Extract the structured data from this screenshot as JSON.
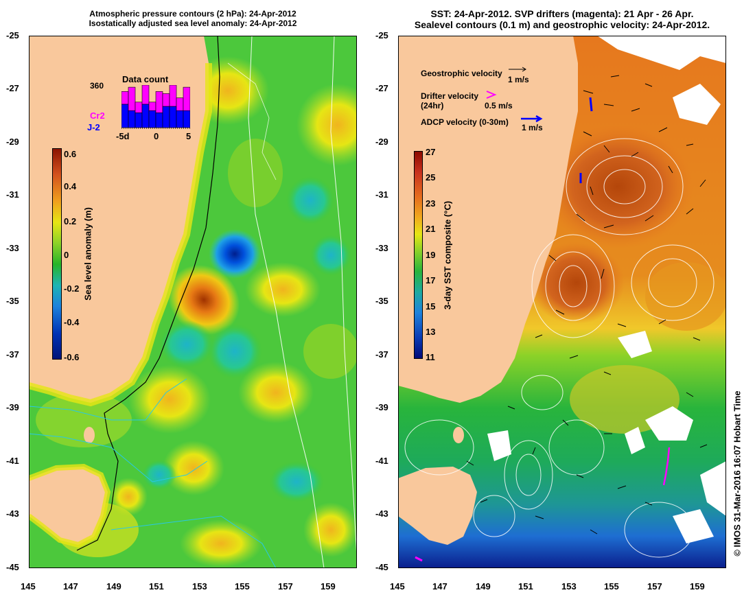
{
  "left_panel": {
    "title_line1": "Atmospheric pressure contours (2 hPa): 24-Apr-2012",
    "title_line2": "Isostatically adjusted sea level anomaly: 24-Apr-2012",
    "colorbar": {
      "label": "Sea level anomaly (m)",
      "ticks": [
        "0.6",
        "0.4",
        "0.2",
        "0",
        "-0.2",
        "-0.4",
        "-0.6"
      ]
    },
    "inset": {
      "title": "Data count",
      "max_label": "360",
      "x_ticks": [
        "-5d",
        "0",
        "5"
      ],
      "series": [
        {
          "name": "Cr2",
          "color": "#ff00ff"
        },
        {
          "name": "J-2",
          "color": "#0000ff"
        }
      ],
      "chart_data": {
        "type": "bar",
        "categories": [
          "-5",
          "-4",
          "-3",
          "-2",
          "-1",
          "0",
          "1",
          "2",
          "3",
          "4"
        ],
        "series": [
          {
            "name": "J-2",
            "values": [
              0.55,
              0.4,
              0.35,
              0.55,
              0.4,
              0.35,
              0.5,
              0.5,
              0.4,
              0.4
            ]
          },
          {
            "name": "Cr2",
            "values": [
              0.3,
              0.55,
              0.25,
              0.45,
              0.2,
              0.5,
              0.3,
              0.5,
              0.3,
              0.55
            ]
          }
        ]
      }
    }
  },
  "right_panel": {
    "title_line1": "SST: 24-Apr-2012. SVP drifters (magenta): 21 Apr - 26 Apr.",
    "title_line2": "Sealevel contours (0.1 m) and geostrophic velocity: 24-Apr-2012.",
    "colorbar": {
      "label": "3-day SST composite (°C)",
      "ticks": [
        "27",
        "25",
        "23",
        "21",
        "19",
        "17",
        "15",
        "13",
        "11"
      ]
    },
    "legend": {
      "geostrophic": "Geostrophic velocity",
      "geostrophic_scale": "1 m/s",
      "drifter_l1": "Drifter velocity",
      "drifter_l2": "(24hr)",
      "drifter_scale": "0.5 m/s",
      "adcp": "ADCP velocity (0-30m)",
      "adcp_scale": "1 m/s",
      "drifter_color": "#ff00ff",
      "adcp_color": "#0000ff"
    }
  },
  "axes": {
    "y_ticks": [
      "-25",
      "-27",
      "-29",
      "-31",
      "-33",
      "-35",
      "-37",
      "-39",
      "-41",
      "-43",
      "-45"
    ],
    "x_ticks": [
      "145",
      "147",
      "149",
      "151",
      "153",
      "155",
      "157",
      "159"
    ]
  },
  "credit": "© IMOS 31-Mar-2016 16:07 Hobart Time",
  "colors": {
    "land": "#f9c89c",
    "sla_positive": "#e8e800",
    "sla_neutral": "#3cc83c",
    "sla_negative": "#0046c8",
    "sst_warm": "#e88c1c",
    "sst_mid": "#28b428",
    "sst_cold": "#001e8c"
  }
}
